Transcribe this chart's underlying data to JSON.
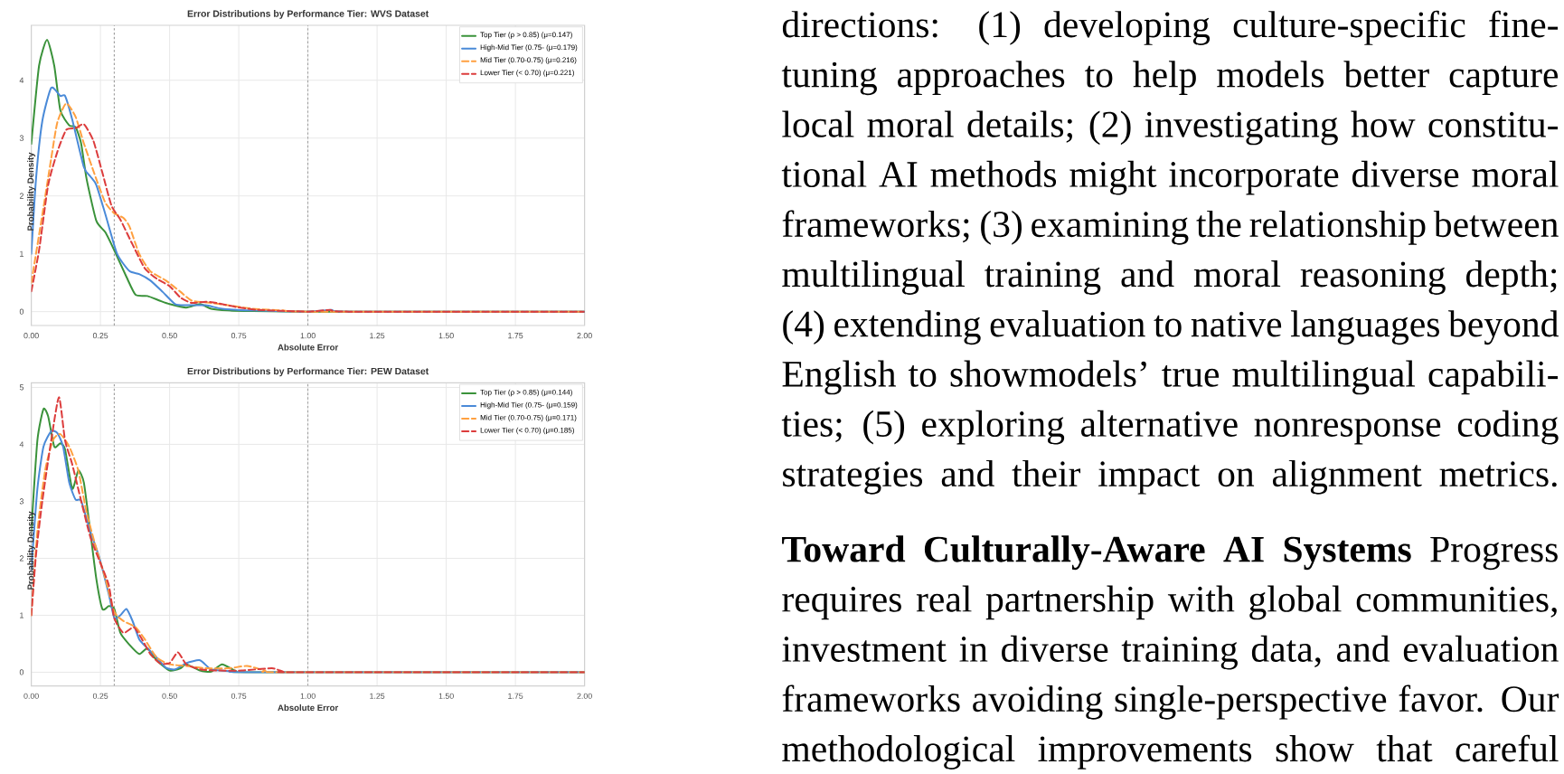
{
  "chart_data": [
    {
      "type": "line",
      "title": "Error Distributions by Performance Tier: WVS Dataset",
      "xlabel": "Absolute Error",
      "ylabel": "Probability Density",
      "xlim": [
        0,
        2
      ],
      "ylim": [
        -0.24,
        4.95
      ],
      "xticks": [
        {
          "value": 0,
          "label": "0.00"
        },
        {
          "value": 0.25,
          "label": "0.25"
        },
        {
          "value": 0.5,
          "label": "0.50"
        },
        {
          "value": 0.75,
          "label": "0.75"
        },
        {
          "value": 1,
          "label": "1.00"
        },
        {
          "value": 1.25,
          "label": "1.25"
        },
        {
          "value": 1.5,
          "label": "1.50"
        },
        {
          "value": 1.75,
          "label": "1.75"
        },
        {
          "value": 2,
          "label": "2.00"
        }
      ],
      "yticks": [
        0,
        1,
        2,
        3,
        4
      ],
      "grid": true,
      "legend": "top right",
      "ref_lines": [
        {
          "axis": "x",
          "value": 0.3,
          "color": "#a0a0a0",
          "line_style": "dotted"
        },
        {
          "axis": "x",
          "value": 1.0,
          "color": "#a0a0a0",
          "line_style": "dotted"
        }
      ],
      "series": [
        {
          "name": "Top Tier (ρ > 0.85) (μ=0.147)",
          "color": "#3a923a",
          "line_style": "solid",
          "x": [
            0,
            0.028,
            0.057,
            0.083,
            0.105,
            0.137,
            0.16,
            0.18,
            0.2,
            0.235,
            0.268,
            0.3,
            0.344,
            0.377,
            0.42,
            0.464,
            0.5,
            0.56,
            0.61,
            0.65,
            0.71,
            0.8,
            1.0,
            1.5,
            2.0
          ],
          "values": [
            2.9,
            4.25,
            4.7,
            4.25,
            3.48,
            3.22,
            3.19,
            2.91,
            2.29,
            1.57,
            1.37,
            1.06,
            0.6,
            0.29,
            0.27,
            0.19,
            0.13,
            0.07,
            0.13,
            0.05,
            0.02,
            0.01,
            0,
            0,
            0
          ]
        },
        {
          "name": "High-Mid Tier (0.75- (μ=0.179)",
          "color": "#4a8ad8",
          "line_style": "solid",
          "x": [
            0,
            0.017,
            0.04,
            0.072,
            0.105,
            0.122,
            0.148,
            0.19,
            0.213,
            0.235,
            0.268,
            0.31,
            0.355,
            0.39,
            0.43,
            0.475,
            0.52,
            0.56,
            0.63,
            0.69,
            0.8,
            1.0,
            1.085,
            1.15,
            2.0
          ],
          "values": [
            1.0,
            2.29,
            3.3,
            3.87,
            3.73,
            3.73,
            3.32,
            2.5,
            2.34,
            2.19,
            1.68,
            1.0,
            0.7,
            0.65,
            0.54,
            0.34,
            0.13,
            0.11,
            0.11,
            0.05,
            0.02,
            0,
            0.03,
            0,
            0
          ]
        },
        {
          "name": "Mid Tier (0.70-0.75) (μ=0.216)",
          "color": "#ffa040",
          "line_style": "dashed",
          "x": [
            0,
            0.04,
            0.072,
            0.094,
            0.126,
            0.16,
            0.19,
            0.235,
            0.268,
            0.3,
            0.333,
            0.355,
            0.39,
            0.43,
            0.486,
            0.54,
            0.58,
            0.65,
            0.71,
            0.8,
            0.91,
            1.0,
            2.0
          ],
          "values": [
            0.5,
            1.68,
            2.65,
            3.27,
            3.6,
            3.37,
            2.91,
            2.29,
            1.88,
            1.7,
            1.62,
            1.47,
            1.0,
            0.7,
            0.54,
            0.34,
            0.19,
            0.15,
            0.11,
            0.05,
            0.02,
            0,
            0
          ]
        },
        {
          "name": "Lower Tier (< 0.70) (μ=0.221)",
          "color": "#dc3c3c",
          "line_style": "dashed",
          "x": [
            0,
            0.028,
            0.061,
            0.094,
            0.126,
            0.16,
            0.19,
            0.224,
            0.257,
            0.29,
            0.322,
            0.366,
            0.41,
            0.453,
            0.5,
            0.54,
            0.58,
            0.63,
            0.67,
            0.74,
            0.82,
            1.0,
            1.08,
            1.15,
            2.0
          ],
          "values": [
            0.35,
            1.06,
            2.19,
            2.76,
            3.14,
            3.17,
            3.24,
            2.96,
            2.4,
            1.83,
            1.59,
            1.16,
            0.75,
            0.57,
            0.44,
            0.24,
            0.15,
            0.17,
            0.15,
            0.08,
            0.03,
            0,
            0.03,
            0,
            0
          ]
        }
      ]
    },
    {
      "type": "line",
      "title": "Error Distributions by Performance Tier: PEW Dataset",
      "xlabel": "Absolute Error",
      "ylabel": "Probability Density",
      "xlim": [
        0,
        2
      ],
      "ylim": [
        -0.24,
        5.08
      ],
      "xticks": [
        {
          "value": 0,
          "label": "0.00"
        },
        {
          "value": 0.25,
          "label": "0.25"
        },
        {
          "value": 0.5,
          "label": "0.50"
        },
        {
          "value": 0.75,
          "label": "0.75"
        },
        {
          "value": 1,
          "label": "1.00"
        },
        {
          "value": 1.25,
          "label": "1.25"
        },
        {
          "value": 1.5,
          "label": "1.50"
        },
        {
          "value": 1.75,
          "label": "1.75"
        },
        {
          "value": 2,
          "label": "2.00"
        }
      ],
      "yticks": [
        0,
        1,
        2,
        3,
        4,
        5
      ],
      "grid": true,
      "legend": "top right",
      "ref_lines": [
        {
          "axis": "x",
          "value": 0.3,
          "color": "#a0a0a0",
          "line_style": "dotted"
        },
        {
          "axis": "x",
          "value": 1.0,
          "color": "#a0a0a0",
          "line_style": "dotted"
        }
      ],
      "series": [
        {
          "name": "Top Tier (ρ > 0.85) (μ=0.144)",
          "color": "#3a923a",
          "line_style": "solid",
          "x": [
            0,
            0.022,
            0.044,
            0.061,
            0.083,
            0.105,
            0.122,
            0.148,
            0.17,
            0.19,
            0.213,
            0.235,
            0.257,
            0.28,
            0.3,
            0.322,
            0.355,
            0.39,
            0.42,
            0.453,
            0.5,
            0.54,
            0.56,
            0.61,
            0.65,
            0.69,
            0.74,
            0.8,
            2.0
          ],
          "values": [
            2.48,
            4.07,
            4.62,
            4.49,
            3.96,
            4.02,
            3.91,
            3.22,
            3.54,
            3.33,
            2.48,
            1.64,
            1.11,
            1.16,
            1.11,
            0.69,
            0.48,
            0.32,
            0.42,
            0.21,
            0.03,
            0.07,
            0.14,
            0.03,
            0.01,
            0.14,
            0.02,
            0,
            0
          ]
        },
        {
          "name": "High-Mid Tier (0.75- (μ=0.159)",
          "color": "#4a8ad8",
          "line_style": "solid",
          "x": [
            0,
            0.022,
            0.044,
            0.072,
            0.094,
            0.115,
            0.137,
            0.16,
            0.18,
            0.213,
            0.246,
            0.28,
            0.3,
            0.322,
            0.344,
            0.366,
            0.39,
            0.42,
            0.453,
            0.486,
            0.52,
            0.56,
            0.61,
            0.65,
            0.715,
            0.8,
            2.0
          ],
          "values": [
            1.8,
            3.22,
            3.96,
            4.23,
            4.2,
            3.96,
            3.33,
            3.03,
            3.01,
            2.48,
            2.01,
            1.37,
            0.95,
            1.0,
            1.11,
            0.9,
            0.58,
            0.42,
            0.26,
            0.08,
            0.05,
            0.16,
            0.21,
            0.05,
            0.02,
            0,
            0
          ]
        },
        {
          "name": "Mid Tier (0.70-0.75) (μ=0.171)",
          "color": "#ffa040",
          "line_style": "dashed",
          "x": [
            0,
            0.022,
            0.05,
            0.078,
            0.105,
            0.137,
            0.17,
            0.2,
            0.235,
            0.268,
            0.3,
            0.333,
            0.377,
            0.41,
            0.453,
            0.5,
            0.56,
            0.63,
            0.715,
            0.78,
            0.845,
            0.9,
            2.0
          ],
          "values": [
            1.0,
            2.48,
            3.54,
            4.07,
            4.18,
            3.96,
            3.54,
            2.8,
            2.17,
            1.64,
            1.06,
            0.9,
            0.79,
            0.58,
            0.26,
            0.14,
            0.11,
            0.07,
            0.07,
            0.11,
            0.03,
            0,
            0
          ]
        },
        {
          "name": "Lower Tier (< 0.70) (μ=0.185)",
          "color": "#dc3c3c",
          "line_style": "dashed",
          "x": [
            0,
            0.017,
            0.04,
            0.072,
            0.1,
            0.122,
            0.148,
            0.18,
            0.213,
            0.246,
            0.28,
            0.3,
            0.333,
            0.37,
            0.4,
            0.43,
            0.464,
            0.5,
            0.53,
            0.56,
            0.61,
            0.67,
            0.76,
            0.87,
            0.91,
            0.95,
            2.0
          ],
          "values": [
            1.0,
            2.06,
            3.01,
            4.07,
            4.83,
            4.07,
            3.65,
            3.01,
            2.38,
            1.96,
            1.53,
            0.95,
            0.69,
            0.79,
            0.58,
            0.32,
            0.16,
            0.16,
            0.35,
            0.14,
            0.05,
            0.03,
            0.03,
            0.07,
            0.01,
            0,
            0
          ]
        }
      ]
    },
    {
      "type": "other",
      "annotations": [
        "directions: (1) developing culture-specific fine-",
        "tuning approaches to help models better capture",
        "local moral details; (2) investigating how constitu-",
        "tional AI methods might incorporate diverse moral",
        "frameworks; (3) examining the relationship between",
        "multilingual training and moral reasoning depth;",
        "(4) extending evaluation to native languages beyond",
        "English to showmodels’ true multilingual capabili-",
        "ties; (5) exploring alternative nonresponse coding",
        "strategies and their impact on alignment metrics."
      ]
    },
    {
      "type": "other",
      "annotations": [
        "**Toward Culturally-Aware AI Systems**  Progress",
        "requires real partnership with global communities,",
        "investment in diverse training data, and evaluation",
        "frameworks avoiding single-perspective favor. Our",
        "methodological improvements show that careful"
      ]
    }
  ]
}
